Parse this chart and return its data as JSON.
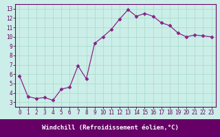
{
  "x": [
    0,
    1,
    2,
    3,
    4,
    5,
    6,
    7,
    8,
    9,
    10,
    11,
    12,
    13,
    14,
    15,
    16,
    17,
    18,
    19,
    20,
    21,
    22,
    23
  ],
  "y": [
    5.8,
    3.6,
    3.4,
    3.5,
    3.2,
    4.4,
    4.6,
    6.9,
    5.5,
    9.3,
    10.0,
    10.8,
    11.9,
    12.9,
    12.2,
    12.5,
    12.2,
    11.5,
    11.2,
    10.4,
    10.0,
    10.2,
    10.1,
    10.0
  ],
  "line_color": "#882288",
  "marker": "D",
  "marker_size": 2.5,
  "bg_color": "#cceee8",
  "grid_color": "#aaddcc",
  "xlabel": "Windchill (Refroidissement éolien,°C)",
  "xlim": [
    -0.5,
    23.5
  ],
  "ylim": [
    2.5,
    13.5
  ],
  "yticks": [
    3,
    4,
    5,
    6,
    7,
    8,
    9,
    10,
    11,
    12,
    13
  ],
  "xticks": [
    0,
    1,
    2,
    3,
    4,
    5,
    6,
    7,
    8,
    9,
    10,
    11,
    12,
    13,
    14,
    15,
    16,
    17,
    18,
    19,
    20,
    21,
    22,
    23
  ],
  "tick_label_fontsize": 5.5,
  "xlabel_fontsize": 6.5,
  "axis_label_color": "#ffffff",
  "tick_color": "#660066",
  "spine_color": "#660066",
  "xlabel_bg": "#660066"
}
